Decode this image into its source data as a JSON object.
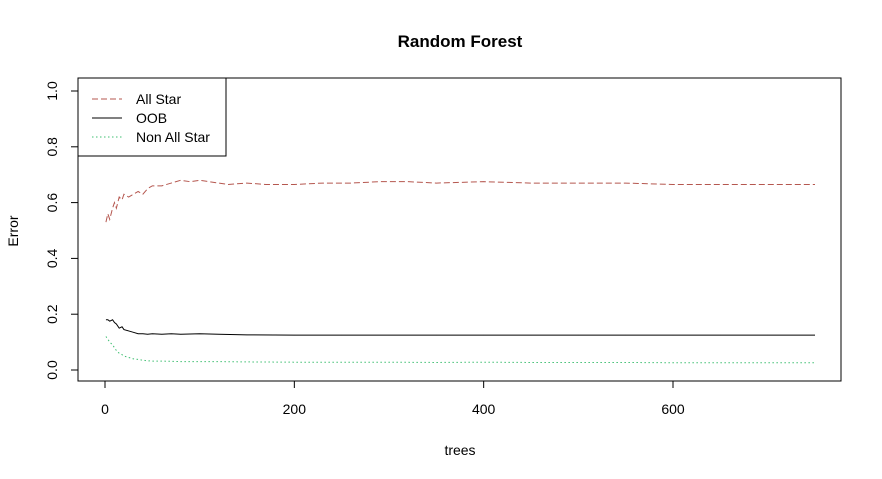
{
  "chart_data": {
    "type": "line",
    "title": "Random Forest",
    "xlabel": "trees",
    "ylabel": "Error",
    "xlim": [
      0,
      750
    ],
    "ylim": [
      0,
      1.0
    ],
    "x_ticks": [
      0,
      200,
      400,
      600
    ],
    "y_ticks": [
      0.0,
      0.2,
      0.4,
      0.6,
      0.8,
      1.0
    ],
    "x_tick_labels": [
      "0",
      "200",
      "400",
      "600"
    ],
    "y_tick_labels": [
      "0.0",
      "0.2",
      "0.4",
      "0.6",
      "0.8",
      "1.0"
    ],
    "legend_position": "top-left",
    "series": [
      {
        "name": "All Star",
        "color": "#b5574f",
        "dash": "dashed",
        "x": [
          1,
          3,
          5,
          8,
          10,
          12,
          15,
          18,
          20,
          25,
          30,
          35,
          40,
          45,
          50,
          60,
          70,
          80,
          90,
          100,
          110,
          120,
          130,
          150,
          170,
          200,
          230,
          260,
          290,
          320,
          350,
          400,
          450,
          500,
          550,
          600,
          650,
          700,
          750
        ],
        "values": [
          0.53,
          0.56,
          0.54,
          0.58,
          0.6,
          0.58,
          0.62,
          0.61,
          0.63,
          0.62,
          0.63,
          0.64,
          0.63,
          0.65,
          0.66,
          0.66,
          0.67,
          0.68,
          0.675,
          0.68,
          0.675,
          0.67,
          0.665,
          0.67,
          0.665,
          0.665,
          0.67,
          0.67,
          0.675,
          0.675,
          0.67,
          0.675,
          0.67,
          0.67,
          0.67,
          0.665,
          0.665,
          0.665,
          0.665
        ]
      },
      {
        "name": "OOB",
        "color": "#000000",
        "dash": "solid",
        "x": [
          1,
          3,
          5,
          8,
          10,
          12,
          15,
          18,
          20,
          25,
          30,
          35,
          40,
          45,
          50,
          60,
          70,
          80,
          100,
          120,
          150,
          200,
          250,
          300,
          350,
          400,
          450,
          500,
          550,
          600,
          650,
          700,
          750
        ],
        "values": [
          0.18,
          0.18,
          0.175,
          0.18,
          0.17,
          0.165,
          0.15,
          0.155,
          0.145,
          0.14,
          0.135,
          0.13,
          0.13,
          0.128,
          0.13,
          0.128,
          0.13,
          0.128,
          0.13,
          0.128,
          0.126,
          0.125,
          0.125,
          0.125,
          0.125,
          0.125,
          0.125,
          0.125,
          0.125,
          0.125,
          0.125,
          0.125,
          0.125
        ]
      },
      {
        "name": "Non All Star",
        "color": "#3fbf72",
        "dash": "dotted",
        "x": [
          1,
          3,
          5,
          8,
          10,
          12,
          15,
          18,
          20,
          25,
          30,
          35,
          40,
          45,
          50,
          60,
          70,
          80,
          100,
          120,
          150,
          200,
          250,
          300,
          350,
          400,
          450,
          500,
          550,
          600,
          650,
          700,
          750
        ],
        "values": [
          0.12,
          0.11,
          0.1,
          0.09,
          0.08,
          0.07,
          0.06,
          0.055,
          0.05,
          0.045,
          0.04,
          0.038,
          0.035,
          0.033,
          0.032,
          0.032,
          0.031,
          0.03,
          0.03,
          0.03,
          0.029,
          0.028,
          0.028,
          0.028,
          0.027,
          0.028,
          0.027,
          0.027,
          0.027,
          0.026,
          0.026,
          0.026,
          0.026
        ]
      }
    ]
  }
}
